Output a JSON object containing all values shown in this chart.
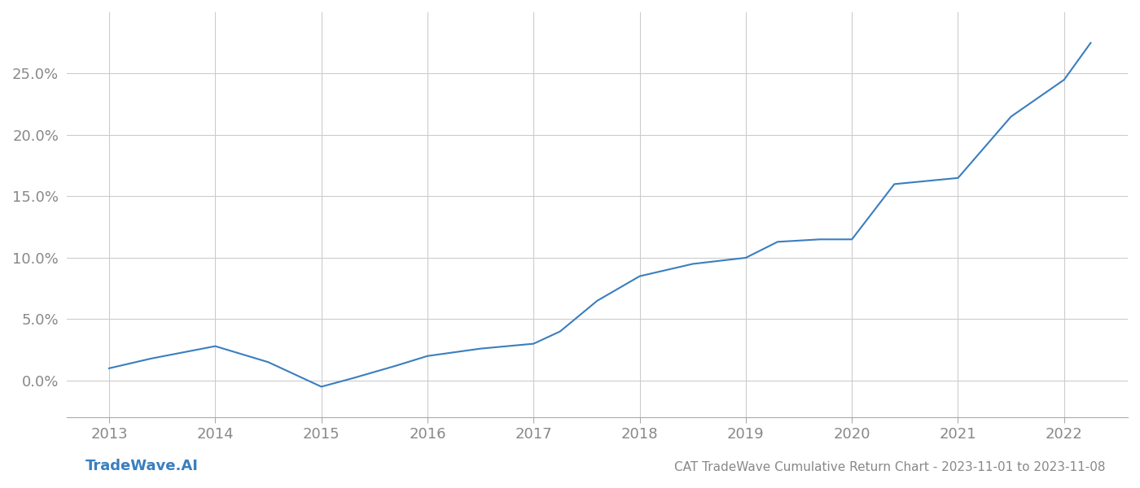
{
  "title": "CAT TradeWave Cumulative Return Chart - 2023-11-01 to 2023-11-08",
  "watermark": "TradeWave.AI",
  "line_color": "#3a7ebf",
  "background_color": "#ffffff",
  "grid_color": "#cccccc",
  "x_values": [
    2013.0,
    2013.4,
    2014.0,
    2014.5,
    2015.0,
    2015.3,
    2015.7,
    2016.0,
    2016.5,
    2017.0,
    2017.25,
    2017.6,
    2018.0,
    2018.5,
    2019.0,
    2019.3,
    2019.7,
    2020.0,
    2020.4,
    2021.0,
    2021.5,
    2022.0,
    2022.25
  ],
  "y_values": [
    0.01,
    0.018,
    0.028,
    0.015,
    -0.005,
    0.002,
    0.012,
    0.02,
    0.026,
    0.03,
    0.04,
    0.065,
    0.085,
    0.095,
    0.1,
    0.113,
    0.115,
    0.115,
    0.16,
    0.165,
    0.215,
    0.245,
    0.275
  ],
  "xlim": [
    2012.6,
    2022.6
  ],
  "ylim": [
    -0.03,
    0.3
  ],
  "xticks": [
    2013,
    2014,
    2015,
    2016,
    2017,
    2018,
    2019,
    2020,
    2021,
    2022
  ],
  "yticks": [
    0.0,
    0.05,
    0.1,
    0.15,
    0.2,
    0.25
  ],
  "ytick_labels": [
    "0.0%",
    "5.0%",
    "10.0%",
    "15.0%",
    "20.0%",
    "25.0%"
  ],
  "line_width": 1.5,
  "title_fontsize": 11,
  "tick_fontsize": 13,
  "watermark_fontsize": 13,
  "title_color": "#888888",
  "tick_color": "#888888",
  "watermark_color": "#3a7ebf",
  "spine_color": "#aaaaaa"
}
